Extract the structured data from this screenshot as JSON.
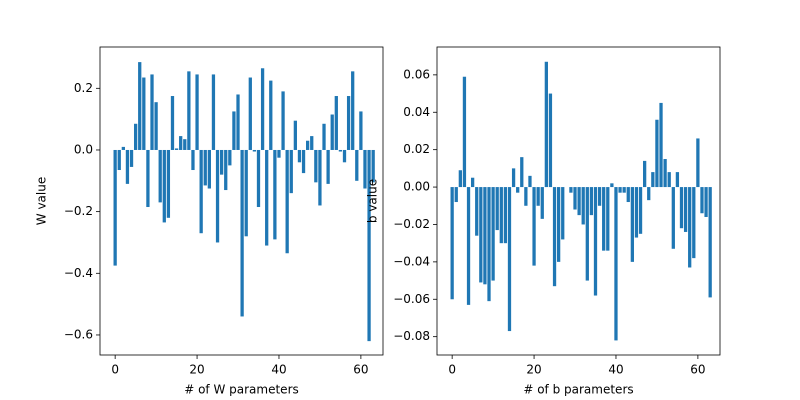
{
  "chart_data": [
    {
      "type": "bar",
      "xlabel": "# of W parameters",
      "ylabel": "W value",
      "color": "#1f77b4",
      "x": [
        0,
        1,
        2,
        3,
        4,
        5,
        6,
        7,
        8,
        9,
        10,
        11,
        12,
        13,
        14,
        15,
        16,
        17,
        18,
        19,
        20,
        21,
        22,
        23,
        24,
        25,
        26,
        27,
        28,
        29,
        30,
        31,
        32,
        33,
        34,
        35,
        36,
        37,
        38,
        39,
        40,
        41,
        42,
        43,
        44,
        45,
        46,
        47,
        48,
        49,
        50,
        51,
        52,
        53,
        54,
        55,
        56,
        57,
        58,
        59,
        60,
        61,
        62,
        63
      ],
      "values": [
        -0.375,
        -0.065,
        0.01,
        -0.11,
        -0.055,
        0.085,
        0.285,
        0.235,
        -0.185,
        0.245,
        0.155,
        -0.17,
        -0.235,
        -0.22,
        0.175,
        0.005,
        0.045,
        0.035,
        0.255,
        -0.065,
        0.245,
        -0.27,
        -0.115,
        -0.125,
        0.245,
        -0.3,
        -0.08,
        -0.13,
        -0.05,
        0.125,
        0.18,
        -0.54,
        -0.28,
        0.235,
        -0.005,
        -0.185,
        0.265,
        -0.31,
        0.225,
        -0.29,
        -0.025,
        0.19,
        -0.335,
        -0.14,
        0.095,
        -0.04,
        -0.075,
        0.03,
        0.045,
        -0.105,
        -0.18,
        0.085,
        -0.11,
        0.115,
        0.175,
        -0.005,
        -0.04,
        0.175,
        0.255,
        -0.1,
        0.125,
        -0.125,
        -0.62,
        -0.105
      ],
      "xlim": [
        -3.7,
        65.4
      ],
      "xticks": [
        0,
        20,
        40,
        60
      ],
      "ylim": [
        -0.665,
        0.334
      ],
      "yticks": [
        {
          "value": -0.6,
          "label": "−0.6"
        },
        {
          "value": -0.4,
          "label": "−0.4"
        },
        {
          "value": -0.2,
          "label": "−0.2"
        },
        {
          "value": 0,
          "label": "0.0"
        },
        0.2
      ]
    },
    {
      "type": "bar",
      "xlabel": "# of b parameters",
      "ylabel": "b value",
      "color": "#1f77b4",
      "x": [
        0,
        1,
        2,
        3,
        4,
        5,
        6,
        7,
        8,
        9,
        10,
        11,
        12,
        13,
        14,
        15,
        16,
        17,
        18,
        19,
        20,
        21,
        22,
        23,
        24,
        25,
        26,
        27,
        28,
        29,
        30,
        31,
        32,
        33,
        34,
        35,
        36,
        37,
        38,
        39,
        40,
        41,
        42,
        43,
        44,
        45,
        46,
        47,
        48,
        49,
        50,
        51,
        52,
        53,
        54,
        55,
        56,
        57,
        58,
        59,
        60,
        61,
        62,
        63
      ],
      "values": [
        -0.06,
        -0.008,
        0.009,
        0.059,
        -0.063,
        0.005,
        -0.026,
        -0.051,
        -0.052,
        -0.061,
        -0.05,
        -0.023,
        -0.03,
        -0.03,
        -0.077,
        0.01,
        -0.003,
        0.016,
        -0.01,
        0.006,
        -0.042,
        -0.01,
        -0.017,
        0.067,
        0.05,
        -0.053,
        -0.04,
        -0.028,
        0.0,
        -0.003,
        -0.012,
        -0.015,
        -0.02,
        -0.05,
        -0.015,
        -0.058,
        -0.01,
        -0.034,
        -0.034,
        0.002,
        -0.082,
        -0.003,
        -0.003,
        -0.008,
        -0.04,
        -0.027,
        -0.025,
        0.014,
        -0.007,
        0.008,
        0.036,
        0.045,
        0.015,
        0.008,
        -0.033,
        0.008,
        -0.022,
        -0.024,
        -0.043,
        -0.038,
        0.026,
        -0.014,
        -0.016,
        -0.059
      ],
      "xlim": [
        -3.7,
        65.4
      ],
      "xticks": [
        0,
        20,
        40,
        60
      ],
      "ylim": [
        -0.0898,
        0.0749
      ],
      "yticks": [
        {
          "value": -0.08,
          "label": "−0.08"
        },
        {
          "value": -0.06,
          "label": "−0.06"
        },
        {
          "value": -0.04,
          "label": "−0.04"
        },
        {
          "value": -0.02,
          "label": "−0.02"
        },
        {
          "value": 0,
          "label": "0.00"
        },
        0.02,
        0.04,
        0.06
      ]
    }
  ]
}
